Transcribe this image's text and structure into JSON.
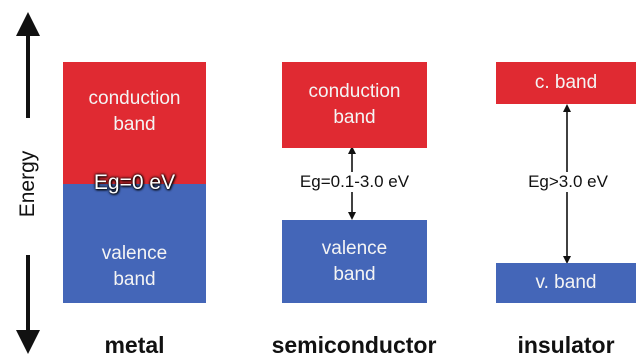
{
  "axis": {
    "label": "Energy"
  },
  "metal": {
    "title": "metal",
    "conduction_label": "conduction\nband",
    "valence_label": "valence\nband",
    "gap_label": "Eg=0 eV"
  },
  "semiconductor": {
    "title": "semiconductor",
    "conduction_label": "conduction\nband",
    "valence_label": "valence\nband",
    "gap_label": "Eg=0.1-3.0 eV"
  },
  "insulator": {
    "title": "insulator",
    "conduction_label": "c. band",
    "valence_label": "v. band",
    "gap_label": "Eg>3.0 eV"
  },
  "colors": {
    "conduction": "#e02a32",
    "valence": "#4466b8"
  }
}
